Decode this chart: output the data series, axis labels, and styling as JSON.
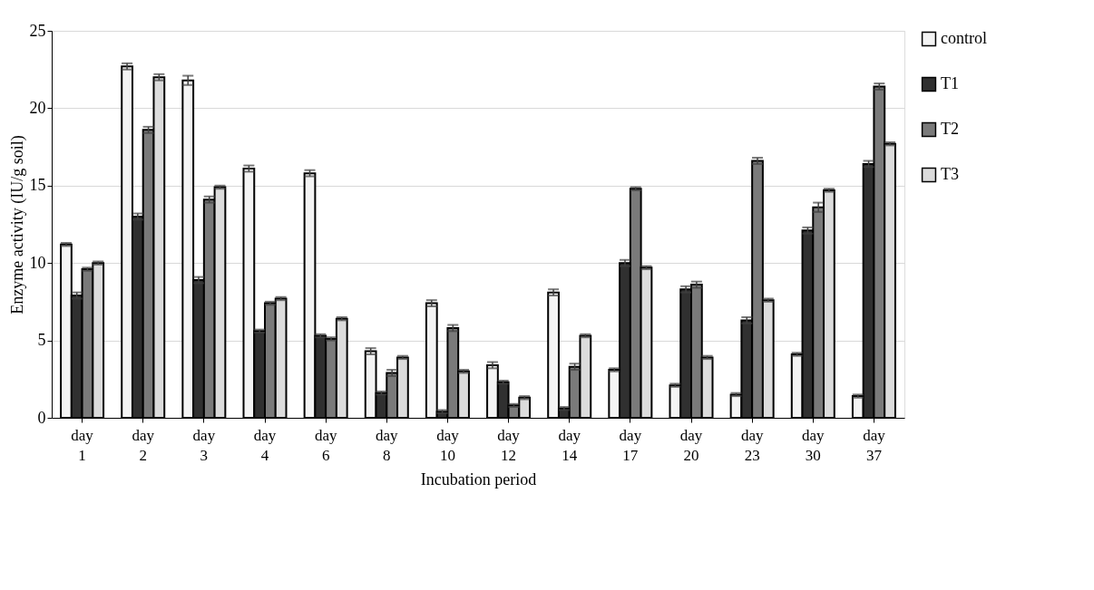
{
  "chart_data": {
    "type": "bar",
    "xlabel": "Incubation period",
    "ylabel": "Enzyme activity (IU/g soil)",
    "categories": [
      "day 1",
      "day 2",
      "day 3",
      "day 4",
      "day 6",
      "day 8",
      "day 10",
      "day 12",
      "day 14",
      "day 17",
      "day 20",
      "day 23",
      "day 30",
      "day 37"
    ],
    "series": [
      {
        "name": "control",
        "color": "#f4f4f4",
        "values": [
          11.2,
          22.7,
          21.8,
          16.1,
          15.8,
          4.3,
          7.4,
          3.4,
          8.1,
          3.1,
          2.1,
          1.5,
          4.1,
          1.4
        ],
        "errors": [
          0.1,
          0.2,
          0.3,
          0.2,
          0.2,
          0.2,
          0.2,
          0.2,
          0.2,
          0.1,
          0.1,
          0.1,
          0.1,
          0.1
        ]
      },
      {
        "name": "T1",
        "color": "#303030",
        "values": [
          7.9,
          13.0,
          8.9,
          5.6,
          5.3,
          1.6,
          0.4,
          2.3,
          0.6,
          10.0,
          8.3,
          6.3,
          12.1,
          16.4
        ],
        "errors": [
          0.2,
          0.2,
          0.2,
          0.1,
          0.1,
          0.1,
          0.1,
          0.1,
          0.1,
          0.2,
          0.2,
          0.2,
          0.2,
          0.2
        ]
      },
      {
        "name": "T2",
        "color": "#7a7a7a",
        "values": [
          9.6,
          18.6,
          14.1,
          7.4,
          5.1,
          2.9,
          5.8,
          0.8,
          3.3,
          14.8,
          8.6,
          16.6,
          13.6,
          21.4
        ],
        "errors": [
          0.1,
          0.2,
          0.2,
          0.1,
          0.1,
          0.2,
          0.2,
          0.1,
          0.2,
          0.1,
          0.2,
          0.2,
          0.3,
          0.2
        ]
      },
      {
        "name": "T3",
        "color": "#dcdcdc",
        "values": [
          10.0,
          22.0,
          14.9,
          7.7,
          6.4,
          3.9,
          3.0,
          1.3,
          5.3,
          9.7,
          3.9,
          7.6,
          14.7,
          17.7
        ],
        "errors": [
          0.1,
          0.2,
          0.1,
          0.1,
          0.1,
          0.1,
          0.1,
          0.1,
          0.1,
          0.1,
          0.1,
          0.1,
          0.1,
          0.1
        ]
      }
    ],
    "ylim": [
      0,
      25
    ],
    "yticks": [
      0,
      5,
      10,
      15,
      20,
      25
    ],
    "grid": "y",
    "legend": "right"
  }
}
